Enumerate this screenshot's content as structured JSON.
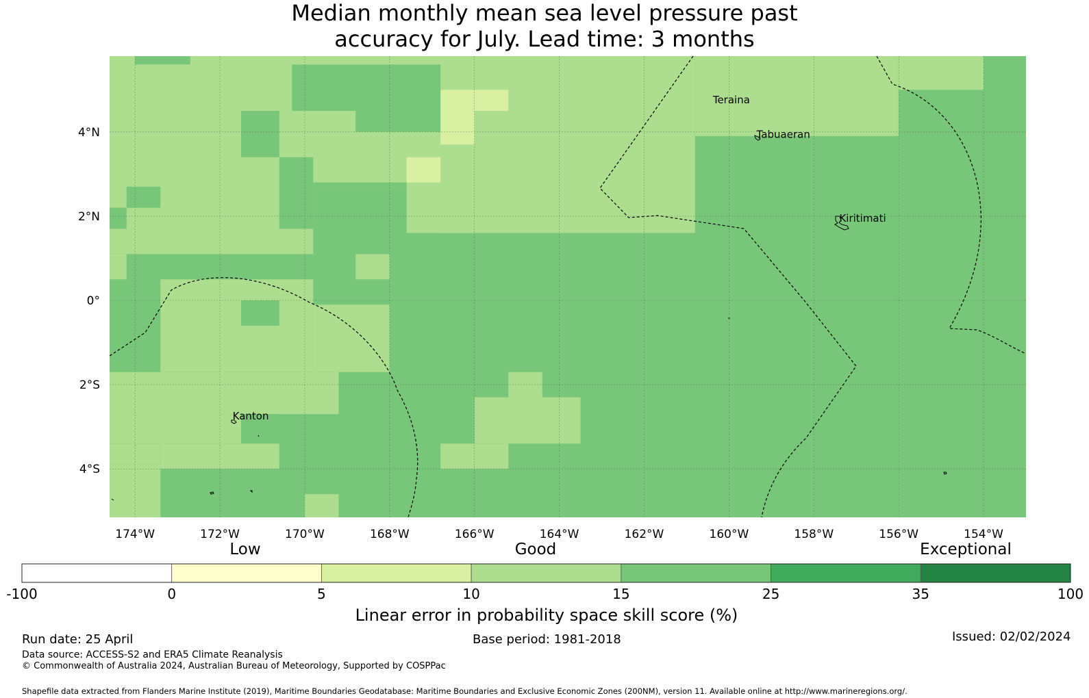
{
  "title": {
    "line1": "Median monthly mean sea level pressure past",
    "line2": "accuracy for July. Lead time: 3 months"
  },
  "map": {
    "lon_range": [
      -174.6,
      -153.0
    ],
    "lat_range": [
      -5.15,
      5.8
    ],
    "lon_ticks": [
      {
        "value": -174,
        "label": "174°W"
      },
      {
        "value": -172,
        "label": "172°W"
      },
      {
        "value": -170,
        "label": "170°W"
      },
      {
        "value": -168,
        "label": "168°W"
      },
      {
        "value": -166,
        "label": "166°W"
      },
      {
        "value": -164,
        "label": "164°W"
      },
      {
        "value": -162,
        "label": "162°W"
      },
      {
        "value": -160,
        "label": "160°W"
      },
      {
        "value": -158,
        "label": "158°W"
      },
      {
        "value": -156,
        "label": "156°W"
      },
      {
        "value": -154,
        "label": "154°W"
      }
    ],
    "lat_ticks": [
      {
        "value": 4,
        "label": "4°N"
      },
      {
        "value": 2,
        "label": "2°N"
      },
      {
        "value": 0,
        "label": "0°"
      },
      {
        "value": -2,
        "label": "2°S"
      },
      {
        "value": -4,
        "label": "4°S"
      }
    ],
    "places": [
      {
        "name": "Teraina",
        "label": "Teraina",
        "lon": -160.38,
        "lat": 4.68
      },
      {
        "name": "Tabuaeran",
        "label": "Tabuaeran",
        "lon": -159.35,
        "lat": 3.86
      },
      {
        "name": "Kiritimati",
        "label": "Kiritimati",
        "lon": -157.4,
        "lat": 1.87
      },
      {
        "name": "Kanton",
        "label": "Kanton",
        "lon": -171.7,
        "lat": -2.83
      }
    ],
    "skill_field": {
      "background_class": 15,
      "regions": [
        {
          "lon": [
            -174.6,
            -160.8
          ],
          "lat": [
            1.6,
            5.8
          ],
          "class": 10
        },
        {
          "lon": [
            -160.8,
            -156.0
          ],
          "lat": [
            3.9,
            5.8
          ],
          "class": 10
        },
        {
          "lon": [
            -156.0,
            -154.0
          ],
          "lat": [
            5.0,
            5.8
          ],
          "class": 10
        },
        {
          "lon": [
            -166.8,
            -166.0
          ],
          "lat": [
            3.7,
            5.0
          ],
          "class": 5
        },
        {
          "lon": [
            -166.0,
            -165.2
          ],
          "lat": [
            4.5,
            5.0
          ],
          "class": 5
        },
        {
          "lon": [
            -167.6,
            -166.8
          ],
          "lat": [
            2.8,
            3.4
          ],
          "class": 5
        },
        {
          "lon": [
            -170.3,
            -166.8
          ],
          "lat": [
            4.5,
            5.6
          ],
          "class": 15
        },
        {
          "lon": [
            -168.8,
            -166.8
          ],
          "lat": [
            4.0,
            4.5
          ],
          "class": 15
        },
        {
          "lon": [
            -171.5,
            -170.6
          ],
          "lat": [
            3.4,
            4.5
          ],
          "class": 15
        },
        {
          "lon": [
            -170.6,
            -169.8
          ],
          "lat": [
            1.7,
            3.4
          ],
          "class": 15
        },
        {
          "lon": [
            -169.8,
            -167.6
          ],
          "lat": [
            2.7,
            2.8
          ],
          "class": 15
        },
        {
          "lon": [
            -169.8,
            -167.6
          ],
          "lat": [
            1.6,
            2.7
          ],
          "class": 15
        },
        {
          "lon": [
            -174.0,
            -172.7
          ],
          "lat": [
            5.6,
            5.8
          ],
          "class": 15
        },
        {
          "lon": [
            -174.2,
            -173.4
          ],
          "lat": [
            2.2,
            2.7
          ],
          "class": 15
        },
        {
          "lon": [
            -174.6,
            -174.2
          ],
          "lat": [
            1.7,
            2.2
          ],
          "class": 15
        },
        {
          "lon": [
            -174.6,
            -160.8
          ],
          "lat": [
            -1.7,
            1.6
          ],
          "class": 15
        },
        {
          "lon": [
            -166.8,
            -166.0
          ],
          "lat": [
            1.6,
            2.3
          ],
          "class": 10
        },
        {
          "lon": [
            -174.6,
            -169.8
          ],
          "lat": [
            1.1,
            1.6
          ],
          "class": 10
        },
        {
          "lon": [
            -174.6,
            -174.2
          ],
          "lat": [
            0.5,
            1.1
          ],
          "class": 10
        },
        {
          "lon": [
            -168.8,
            -168.0
          ],
          "lat": [
            0.5,
            1.1
          ],
          "class": 10
        },
        {
          "lon": [
            -173.4,
            -169.8
          ],
          "lat": [
            -1.7,
            0.5
          ],
          "class": 10
        },
        {
          "lon": [
            -169.8,
            -168.0
          ],
          "lat": [
            -1.7,
            -0.1
          ],
          "class": 10
        },
        {
          "lon": [
            -171.5,
            -170.6
          ],
          "lat": [
            -0.6,
            0.0
          ],
          "class": 15
        },
        {
          "lon": [
            -174.6,
            -169.2
          ],
          "lat": [
            -2.7,
            -1.7
          ],
          "class": 10
        },
        {
          "lon": [
            -165.2,
            -164.4
          ],
          "lat": [
            -2.3,
            -1.7
          ],
          "class": 10
        },
        {
          "lon": [
            -166.0,
            -163.5
          ],
          "lat": [
            -3.4,
            -2.3
          ],
          "class": 10
        },
        {
          "lon": [
            -166.8,
            -165.2
          ],
          "lat": [
            -4.0,
            -3.4
          ],
          "class": 10
        },
        {
          "lon": [
            -171.5,
            -170.6
          ],
          "lat": [
            -3.4,
            -2.7
          ],
          "class": 15
        },
        {
          "lon": [
            -174.6,
            -171.5
          ],
          "lat": [
            -3.4,
            -2.7
          ],
          "class": 10
        },
        {
          "lon": [
            -174.6,
            -173.4
          ],
          "lat": [
            -3.9,
            -3.4
          ],
          "class": 10
        },
        {
          "lon": [
            -173.4,
            -170.6
          ],
          "lat": [
            -4.0,
            -3.4
          ],
          "class": 10
        },
        {
          "lon": [
            -174.6,
            -173.4
          ],
          "lat": [
            -5.15,
            -3.9
          ],
          "class": 10
        },
        {
          "lon": [
            -170.0,
            -169.2
          ],
          "lat": [
            -5.15,
            -4.6
          ],
          "class": 10
        }
      ]
    }
  },
  "colorbar": {
    "range_labels": {
      "low": "Low",
      "good": "Good",
      "exceptional": "Exceptional"
    },
    "ticks": [
      "-100",
      "0",
      "5",
      "10",
      "15",
      "25",
      "35",
      "100"
    ],
    "bins": [
      {
        "min": -100,
        "max": 0,
        "color": "#ffffff"
      },
      {
        "min": 0,
        "max": 5,
        "color": "#ffffcc"
      },
      {
        "min": 5,
        "max": 10,
        "color": "#d9f0a3"
      },
      {
        "min": 10,
        "max": 15,
        "color": "#addd8e"
      },
      {
        "min": 15,
        "max": 25,
        "color": "#78c679"
      },
      {
        "min": 25,
        "max": 35,
        "color": "#41ab5d"
      },
      {
        "min": 35,
        "max": 100,
        "color": "#238443"
      }
    ],
    "label": "Linear error in probability space skill score (%)"
  },
  "footer": {
    "run_date": "Run date: 25 April",
    "base_period": "Base period: 1981-2018",
    "issued": "Issued: 02/02/2024",
    "data_source": "Data source: ACCESS-S2 and ERA5 Climate Reanalysis",
    "copyright": "© Commonwealth of Australia 2024, Australian Bureau of Meteorology, Supported by COSPPac",
    "shapefile_note": "Shapefile data extracted from Flanders Marine Institute (2019), Maritime Boundaries Geodatabase: Maritime Boundaries and Exclusive Economic Zones (200NM), version 11. Available online at http://www.marineregions.org/."
  }
}
